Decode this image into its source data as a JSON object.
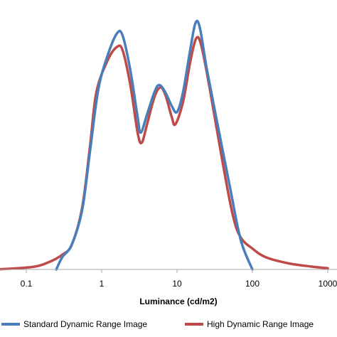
{
  "chart_data": {
    "type": "line",
    "x_scale": "log",
    "xlabel": "Luminance (cd/m2)",
    "ylabel": "",
    "title": "",
    "xlim": [
      0.04,
      1000
    ],
    "ylim": [
      0,
      1
    ],
    "x_ticks": [
      {
        "value": 0.1,
        "label": "0.1"
      },
      {
        "value": 1,
        "label": "1"
      },
      {
        "value": 10,
        "label": "10"
      },
      {
        "value": 100,
        "label": "100"
      },
      {
        "value": 1000,
        "label": "1000"
      }
    ],
    "grid": false,
    "legend_position": "bottom",
    "series": [
      {
        "name": "Standard Dynamic Range Image",
        "color": "#4a7ebb",
        "points": [
          [
            0.25,
            0.0
          ],
          [
            0.3,
            0.05
          ],
          [
            0.4,
            0.1
          ],
          [
            0.55,
            0.24
          ],
          [
            0.7,
            0.48
          ],
          [
            0.9,
            0.73
          ],
          [
            1.2,
            0.87
          ],
          [
            1.6,
            0.96
          ],
          [
            1.9,
            0.95
          ],
          [
            2.4,
            0.81
          ],
          [
            3.0,
            0.62
          ],
          [
            3.3,
            0.556
          ],
          [
            4.0,
            0.63
          ],
          [
            5.0,
            0.72
          ],
          [
            5.8,
            0.75
          ],
          [
            7.0,
            0.72
          ],
          [
            8.5,
            0.665
          ],
          [
            10.0,
            0.64
          ],
          [
            12.0,
            0.72
          ],
          [
            15.0,
            0.895
          ],
          [
            17.5,
            1.0
          ],
          [
            20.0,
            0.985
          ],
          [
            25.0,
            0.81
          ],
          [
            35.0,
            0.58
          ],
          [
            50.0,
            0.34
          ],
          [
            70.0,
            0.12
          ],
          [
            100.0,
            0.0
          ]
        ]
      },
      {
        "name": "High Dynamic Range Image",
        "color": "#be4b48",
        "points": [
          [
            0.04,
            0.0
          ],
          [
            0.12,
            0.01
          ],
          [
            0.2,
            0.03
          ],
          [
            0.3,
            0.06
          ],
          [
            0.4,
            0.1
          ],
          [
            0.55,
            0.25
          ],
          [
            0.7,
            0.5
          ],
          [
            0.85,
            0.72
          ],
          [
            1.2,
            0.85
          ],
          [
            1.6,
            0.905
          ],
          [
            1.9,
            0.89
          ],
          [
            2.4,
            0.75
          ],
          [
            3.0,
            0.556
          ],
          [
            3.4,
            0.515
          ],
          [
            4.0,
            0.59
          ],
          [
            5.0,
            0.7
          ],
          [
            6.0,
            0.74
          ],
          [
            7.0,
            0.71
          ],
          [
            8.5,
            0.62
          ],
          [
            9.5,
            0.59
          ],
          [
            12.0,
            0.68
          ],
          [
            15.0,
            0.845
          ],
          [
            18.0,
            0.94
          ],
          [
            21.0,
            0.91
          ],
          [
            27.0,
            0.74
          ],
          [
            40.0,
            0.44
          ],
          [
            55.0,
            0.22
          ],
          [
            70.0,
            0.13
          ],
          [
            100.0,
            0.085
          ],
          [
            150.0,
            0.05
          ],
          [
            300.0,
            0.025
          ],
          [
            600.0,
            0.012
          ],
          [
            1000.0,
            0.005
          ]
        ]
      }
    ]
  }
}
